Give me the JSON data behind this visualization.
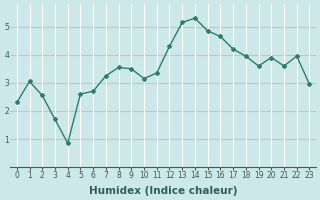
{
  "x": [
    0,
    1,
    2,
    3,
    4,
    5,
    6,
    7,
    8,
    9,
    10,
    11,
    12,
    13,
    14,
    15,
    16,
    17,
    18,
    19,
    20,
    21,
    22,
    23
  ],
  "y": [
    2.3,
    3.05,
    2.55,
    1.7,
    0.85,
    2.6,
    2.7,
    3.25,
    3.55,
    3.5,
    3.15,
    3.35,
    4.3,
    5.15,
    5.3,
    4.85,
    4.65,
    4.2,
    3.95,
    3.6,
    3.9,
    3.6,
    3.95,
    2.95
  ],
  "line_color": "#2d7d6e",
  "marker": "D",
  "marker_size": 2.0,
  "linewidth": 1.0,
  "xlabel": "Humidex (Indice chaleur)",
  "xlim": [
    -0.5,
    23.5
  ],
  "ylim": [
    0,
    5.8
  ],
  "yticks": [
    1,
    2,
    3,
    4,
    5
  ],
  "xticks": [
    0,
    1,
    2,
    3,
    4,
    5,
    6,
    7,
    8,
    9,
    10,
    11,
    12,
    13,
    14,
    15,
    16,
    17,
    18,
    19,
    20,
    21,
    22,
    23
  ],
  "bg_color": "#cde8e8",
  "grid_color_h": "#e8b4b8",
  "grid_color_v": "#ffffff",
  "tick_label_fontsize": 5.5,
  "xlabel_fontsize": 7.5
}
